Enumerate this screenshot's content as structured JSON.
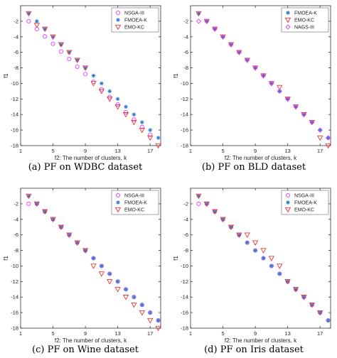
{
  "chart_data": [
    {
      "type": "scatter",
      "caption": "(a) PF on WDBC dataset",
      "xlabel": "f2: The number of clusters, k",
      "ylabel": "f1",
      "xlim": [
        1,
        18.3
      ],
      "ylim": [
        -18,
        0
      ],
      "xticks": [
        1,
        5,
        9,
        13,
        17
      ],
      "yticks": [
        -18,
        -16,
        -14,
        -12,
        -10,
        -8,
        -6,
        -4,
        -2
      ],
      "grid": false,
      "legend_position": "top-right",
      "series": [
        {
          "name": "NSGA-III",
          "marker": "circle",
          "color": "#e040fb",
          "x": [
            2,
            3,
            4,
            5,
            6,
            7,
            8,
            9,
            10,
            11,
            12,
            13,
            14,
            15,
            16,
            17
          ],
          "y": [
            -2,
            -3,
            -3.95,
            -4.9,
            -5.9,
            -6.85,
            -7.85,
            -8.8,
            -9.8,
            -10.75,
            -11.75,
            -12.7,
            -13.7,
            -14.65,
            -15.6,
            -16.6
          ]
        },
        {
          "name": "FMOEA-K",
          "marker": "star",
          "color": "#2a7bd0",
          "x": [
            2,
            3,
            4,
            5,
            6,
            7,
            8,
            9,
            10,
            11,
            12,
            13,
            14,
            15,
            16,
            17,
            18
          ],
          "y": [
            -1,
            -2,
            -3,
            -4,
            -5,
            -6,
            -7,
            -8,
            -9,
            -10,
            -11,
            -12,
            -13,
            -14,
            -15,
            -16,
            -17
          ]
        },
        {
          "name": "EMO-KC",
          "marker": "triangle-down",
          "color": "#e53935",
          "x": [
            2,
            3,
            4,
            5,
            6,
            7,
            8,
            9,
            10,
            11,
            12,
            13,
            14,
            15,
            16,
            17,
            18
          ],
          "y": [
            -1,
            -2.5,
            -3,
            -4,
            -5,
            -6,
            -7,
            -8,
            -10,
            -11,
            -12,
            -13,
            -14,
            -15,
            -16,
            -17,
            -18
          ]
        }
      ]
    },
    {
      "type": "scatter",
      "caption": "(b) PF on BLD dataset",
      "xlabel": "f2: The number of clusters, k",
      "ylabel": "f1",
      "xlim": [
        1,
        18.3
      ],
      "ylim": [
        -18,
        0
      ],
      "xticks": [
        1,
        5,
        9,
        13,
        17
      ],
      "yticks": [
        -18,
        -16,
        -14,
        -12,
        -10,
        -8,
        -6,
        -4,
        -2
      ],
      "grid": false,
      "legend_position": "top-right",
      "series": [
        {
          "name": "FMOEA-K",
          "marker": "star",
          "color": "#2a7bd0",
          "x": [
            2,
            3,
            4,
            5,
            6,
            7,
            8,
            9,
            10,
            11,
            12,
            13,
            14,
            15,
            16,
            17,
            18
          ],
          "y": [
            -1,
            -2,
            -3,
            -4,
            -5,
            -6,
            -7,
            -8,
            -9,
            -10,
            -11,
            -12,
            -13,
            -14,
            -15,
            -16,
            -17
          ]
        },
        {
          "name": "EMO-KC",
          "marker": "triangle-down",
          "color": "#e53935",
          "x": [
            2,
            3,
            4,
            5,
            6,
            7,
            8,
            9,
            10,
            11,
            12,
            13,
            14,
            15,
            16,
            17,
            18
          ],
          "y": [
            -1,
            -2,
            -3,
            -4,
            -5,
            -6,
            -7,
            -8,
            -9,
            -10,
            -10.5,
            -12,
            -13,
            -14,
            -15,
            -17,
            -18
          ]
        },
        {
          "name": "NAGS-III",
          "marker": "diamond",
          "color": "#e040fb",
          "x": [
            2,
            3,
            4,
            5,
            6,
            7,
            8,
            9,
            10,
            11,
            12,
            13,
            14,
            15,
            16,
            17,
            18
          ],
          "y": [
            -2,
            -2,
            -3,
            -4,
            -5,
            -6,
            -7,
            -8,
            -9,
            -10,
            -11,
            -12,
            -13,
            -14,
            -15,
            -16,
            -17
          ]
        }
      ]
    },
    {
      "type": "scatter",
      "caption": "(c) PF on Wine dataset",
      "xlabel": "f2: The number of clusters, k",
      "ylabel": "f1",
      "xlim": [
        1,
        18.3
      ],
      "ylim": [
        -18,
        0
      ],
      "xticks": [
        1,
        5,
        9,
        13,
        17
      ],
      "yticks": [
        -18,
        -16,
        -14,
        -12,
        -10,
        -8,
        -6,
        -4,
        -2
      ],
      "grid": false,
      "legend_position": "top-right",
      "series": [
        {
          "name": "NSGA-III",
          "marker": "circle",
          "color": "#e040fb",
          "x": [
            2,
            3,
            4,
            5,
            6,
            7,
            8,
            9,
            10,
            11,
            12,
            13,
            14,
            15,
            16,
            17,
            18
          ],
          "y": [
            -2,
            -2,
            -3,
            -4,
            -5,
            -6,
            -7,
            -8,
            -9,
            -10,
            -11,
            -12,
            -13,
            -14,
            -15,
            -16,
            -17
          ]
        },
        {
          "name": "FMOEA-K",
          "marker": "star",
          "color": "#2a7bd0",
          "x": [
            2,
            3,
            4,
            5,
            6,
            7,
            8,
            9,
            10,
            11,
            12,
            13,
            14,
            15,
            16,
            17,
            18
          ],
          "y": [
            -1,
            -2,
            -3,
            -4,
            -5,
            -6,
            -7,
            -8,
            -9,
            -10,
            -11,
            -12,
            -13,
            -14,
            -15,
            -16,
            -17
          ]
        },
        {
          "name": "EMO-KC",
          "marker": "triangle-down",
          "color": "#e53935",
          "x": [
            2,
            3,
            4,
            5,
            6,
            7,
            8,
            9,
            10,
            11,
            12,
            13,
            14,
            15,
            16,
            17,
            18
          ],
          "y": [
            -1,
            -2,
            -3,
            -4,
            -5,
            -6,
            -7,
            -8,
            -10,
            -11,
            -12,
            -13,
            -14,
            -15,
            -16,
            -17,
            -18
          ]
        }
      ]
    },
    {
      "type": "scatter",
      "caption": "(d) PF on Iris dataset",
      "xlabel": "f2: The number of clusters, k",
      "ylabel": "f1",
      "xlim": [
        1,
        18.3
      ],
      "ylim": [
        -18,
        0
      ],
      "xticks": [
        1,
        5,
        9,
        13,
        17
      ],
      "yticks": [
        -18,
        -16,
        -14,
        -12,
        -10,
        -8,
        -6,
        -4,
        -2
      ],
      "grid": false,
      "legend_position": "top-right",
      "series": [
        {
          "name": "NSGA-III",
          "marker": "circle",
          "color": "#e040fb",
          "x": [
            2,
            3,
            4,
            5,
            6,
            7,
            8,
            9,
            10,
            11,
            12,
            13,
            14,
            15,
            16,
            17,
            18
          ],
          "y": [
            -2,
            -2,
            -3,
            -4,
            -5,
            -6,
            -7,
            -8,
            -9,
            -10,
            -11,
            -12,
            -13,
            -14,
            -15,
            -16,
            -17
          ]
        },
        {
          "name": "FMOEA-K",
          "marker": "star",
          "color": "#2a7bd0",
          "x": [
            2,
            3,
            4,
            5,
            6,
            7,
            8,
            9,
            10,
            11,
            12,
            13,
            14,
            15,
            16,
            17,
            18
          ],
          "y": [
            -1,
            -2,
            -3,
            -4,
            -5,
            -6,
            -7,
            -8,
            -9,
            -10,
            -11,
            -12,
            -13,
            -14,
            -15,
            -16,
            -17
          ]
        },
        {
          "name": "EMO-KC",
          "marker": "triangle-down",
          "color": "#e53935",
          "x": [
            2,
            3,
            4,
            5,
            6,
            7,
            8,
            9,
            10,
            11,
            12,
            13,
            14,
            15,
            16,
            17
          ],
          "y": [
            -1,
            -2,
            -3,
            -4,
            -5,
            -6,
            -6,
            -7,
            -8,
            -9,
            -10,
            -12,
            -13,
            -14,
            -15,
            -16
          ]
        }
      ]
    }
  ]
}
